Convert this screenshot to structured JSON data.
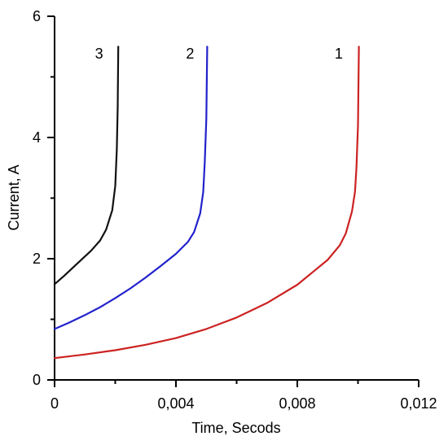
{
  "chart_data": {
    "type": "line",
    "title": "",
    "xlabel": "Time, Secods",
    "ylabel": "Current, A",
    "xlim": [
      0,
      0.012
    ],
    "ylim": [
      0,
      6
    ],
    "x_ticks": [
      {
        "value": 0,
        "label": "0"
      },
      {
        "value": 0.004,
        "label": "0,004"
      },
      {
        "value": 0.008,
        "label": "0,008"
      },
      {
        "value": 0.012,
        "label": "0,012"
      }
    ],
    "y_ticks": [
      {
        "value": 0,
        "label": "0"
      },
      {
        "value": 2,
        "label": "2"
      },
      {
        "value": 4,
        "label": "4"
      },
      {
        "value": 6,
        "label": "6"
      }
    ],
    "grid": false,
    "series": [
      {
        "name": "1",
        "color": "#cc2222",
        "label_point": {
          "x": 0.0095,
          "y": 5.3
        },
        "points": [
          [
            0,
            0.36
          ],
          [
            0.001,
            0.42
          ],
          [
            0.002,
            0.49
          ],
          [
            0.003,
            0.58
          ],
          [
            0.004,
            0.69
          ],
          [
            0.005,
            0.84
          ],
          [
            0.006,
            1.03
          ],
          [
            0.007,
            1.27
          ],
          [
            0.008,
            1.57
          ],
          [
            0.009,
            1.98
          ],
          [
            0.0094,
            2.22
          ],
          [
            0.0096,
            2.42
          ],
          [
            0.0098,
            2.78
          ],
          [
            0.0099,
            3.1
          ],
          [
            0.00995,
            3.5
          ],
          [
            0.01,
            4.2
          ],
          [
            0.01003,
            5.5
          ]
        ]
      },
      {
        "name": "2",
        "color": "#2222cc",
        "label_point": {
          "x": 0.0046,
          "y": 5.3
        },
        "points": [
          [
            0,
            0.84
          ],
          [
            0.0005,
            0.95
          ],
          [
            0.001,
            1.07
          ],
          [
            0.0015,
            1.2
          ],
          [
            0.002,
            1.35
          ],
          [
            0.0025,
            1.51
          ],
          [
            0.003,
            1.69
          ],
          [
            0.0035,
            1.88
          ],
          [
            0.004,
            2.08
          ],
          [
            0.0044,
            2.28
          ],
          [
            0.0046,
            2.44
          ],
          [
            0.0048,
            2.75
          ],
          [
            0.0049,
            3.1
          ],
          [
            0.00495,
            3.6
          ],
          [
            0.005,
            4.3
          ],
          [
            0.00503,
            5.5
          ]
        ]
      },
      {
        "name": "3",
        "color": "#111111",
        "label_point": {
          "x": 0.0016,
          "y": 5.3
        },
        "points": [
          [
            0,
            1.58
          ],
          [
            0.0003,
            1.71
          ],
          [
            0.0006,
            1.85
          ],
          [
            0.0009,
            1.99
          ],
          [
            0.0012,
            2.13
          ],
          [
            0.0015,
            2.3
          ],
          [
            0.0017,
            2.48
          ],
          [
            0.0019,
            2.8
          ],
          [
            0.002,
            3.2
          ],
          [
            0.00205,
            3.8
          ],
          [
            0.00208,
            4.5
          ],
          [
            0.0021,
            5.5
          ]
        ]
      }
    ]
  }
}
